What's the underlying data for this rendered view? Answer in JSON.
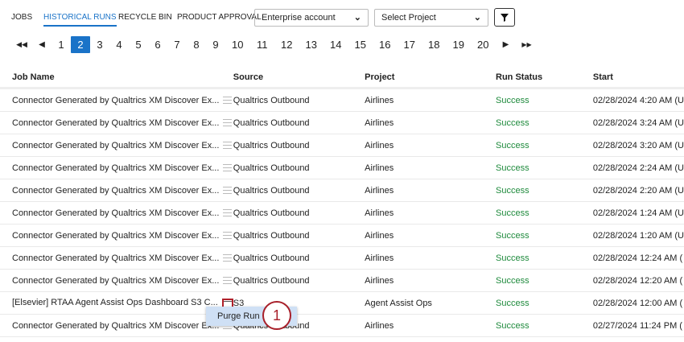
{
  "tabs": [
    {
      "label": "JOBS"
    },
    {
      "label": "HISTORICAL RUNS",
      "active": true
    },
    {
      "label": "RECYCLE BIN"
    },
    {
      "label": "PRODUCT APPROVAL"
    }
  ],
  "filters": {
    "account": "Enterprise account",
    "project": "Select Project"
  },
  "pagination": {
    "current": 2,
    "pages": [
      "1",
      "2",
      "3",
      "4",
      "5",
      "6",
      "7",
      "8",
      "9",
      "10",
      "11",
      "12",
      "13",
      "14",
      "15",
      "16",
      "17",
      "18",
      "19",
      "20"
    ]
  },
  "table": {
    "headers": [
      "Job Name",
      "Source",
      "Project",
      "Run Status",
      "Start"
    ],
    "rows": [
      [
        "Connector Generated by Qualtrics XM Discover Ex...",
        "Qualtrics Outbound",
        "Airlines",
        "Success",
        "02/28/2024 4:20 AM (U"
      ],
      [
        "Connector Generated by Qualtrics XM Discover Ex...",
        "Qualtrics Outbound",
        "Airlines",
        "Success",
        "02/28/2024 3:24 AM (U"
      ],
      [
        "Connector Generated by Qualtrics XM Discover Ex...",
        "Qualtrics Outbound",
        "Airlines",
        "Success",
        "02/28/2024 3:20 AM (U"
      ],
      [
        "Connector Generated by Qualtrics XM Discover Ex...",
        "Qualtrics Outbound",
        "Airlines",
        "Success",
        "02/28/2024 2:24 AM (U"
      ],
      [
        "Connector Generated by Qualtrics XM Discover Ex...",
        "Qualtrics Outbound",
        "Airlines",
        "Success",
        "02/28/2024 2:20 AM (U"
      ],
      [
        "Connector Generated by Qualtrics XM Discover Ex...",
        "Qualtrics Outbound",
        "Airlines",
        "Success",
        "02/28/2024 1:24 AM (U"
      ],
      [
        "Connector Generated by Qualtrics XM Discover Ex...",
        "Qualtrics Outbound",
        "Airlines",
        "Success",
        "02/28/2024 1:20 AM (U"
      ],
      [
        "Connector Generated by Qualtrics XM Discover Ex...",
        "Qualtrics Outbound",
        "Airlines",
        "Success",
        "02/28/2024 12:24 AM ("
      ],
      [
        "Connector Generated by Qualtrics XM Discover Ex...",
        "Qualtrics Outbound",
        "Airlines",
        "Success",
        "02/28/2024 12:20 AM ("
      ],
      [
        "[Elsevier] RTAA Agent Assist Ops Dashboard S3 C...",
        "S3",
        "Agent Assist Ops",
        "Success",
        "02/28/2024 12:00 AM ("
      ],
      [
        "Connector Generated by Qualtrics XM Discover Ex...",
        "Qualtrics Outbound",
        "Airlines",
        "Success",
        "02/27/2024 11:24 PM ("
      ]
    ],
    "highlighted_row": 9
  },
  "context_menu": {
    "item": "Purge Run"
  },
  "callout": "1",
  "colors": {
    "accent": "#1a73c8",
    "success": "#1e8a3c",
    "highlight": "#b0202a"
  }
}
